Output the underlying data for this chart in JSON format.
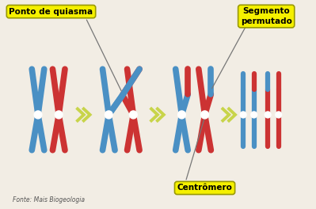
{
  "background_color": "#f2ede4",
  "blue": "#4a90c4",
  "red": "#cc3333",
  "arrow_color": "#c8d44a",
  "label_bg": "#f5f000",
  "label_edge": "#888800",
  "line_color": "#999999",
  "labels": {
    "quiasma": "Ponto de quiasma",
    "segmento": "Segmento\npermutado",
    "centromero": "Centrômero",
    "fonte": "Fonte: Mais Biogeologia"
  },
  "white": "#ffffff",
  "figsize": [
    3.99,
    2.64
  ],
  "dpi": 100
}
